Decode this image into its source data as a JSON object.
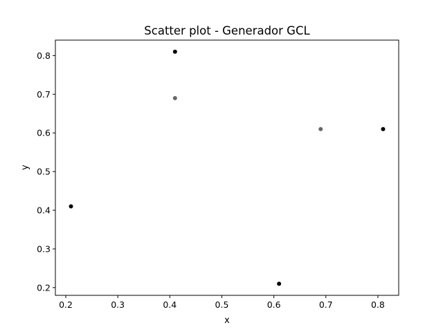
{
  "chart_data": {
    "type": "scatter",
    "title": "Scatter plot - Generador GCL",
    "xlabel": "x",
    "ylabel": "y",
    "xlim": [
      0.18,
      0.84
    ],
    "ylim": [
      0.18,
      0.84
    ],
    "x_ticks": [
      "0.2",
      "0.3",
      "0.4",
      "0.5",
      "0.6",
      "0.7",
      "0.8"
    ],
    "y_ticks": [
      "0.2",
      "0.3",
      "0.4",
      "0.5",
      "0.6",
      "0.7",
      "0.8"
    ],
    "grid": false,
    "points": [
      {
        "x": 0.21,
        "y": 0.41,
        "color": "#000000"
      },
      {
        "x": 0.41,
        "y": 0.81,
        "color": "#000000"
      },
      {
        "x": 0.41,
        "y": 0.69,
        "color": "#666666"
      },
      {
        "x": 0.61,
        "y": 0.21,
        "color": "#000000"
      },
      {
        "x": 0.69,
        "y": 0.61,
        "color": "#666666"
      },
      {
        "x": 0.81,
        "y": 0.61,
        "color": "#000000"
      }
    ]
  }
}
